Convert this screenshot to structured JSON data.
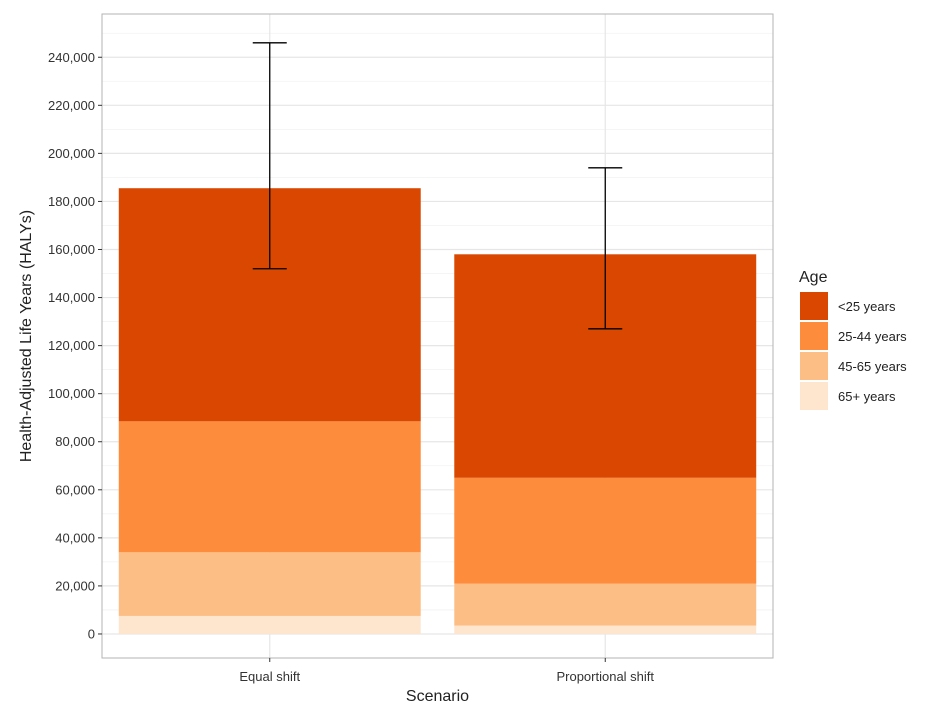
{
  "chart_data": {
    "type": "bar",
    "stacked": true,
    "categories": [
      "Equal shift",
      "Proportional shift"
    ],
    "series": [
      {
        "name": "65+ years",
        "color": "#FEE6CE",
        "values": [
          7500,
          3500
        ]
      },
      {
        "name": "45-65 years",
        "color": "#FDBE85",
        "values": [
          26500,
          17500
        ]
      },
      {
        "name": "25-44 years",
        "color": "#FD8D3C",
        "values": [
          54500,
          44000
        ]
      },
      {
        "name": "<25 years",
        "color": "#D94701",
        "values": [
          97000,
          93000
        ]
      }
    ],
    "totals": [
      185500,
      158000
    ],
    "error_bars": [
      {
        "lower": 152000,
        "upper": 246000
      },
      {
        "lower": 127000,
        "upper": 194000
      }
    ],
    "xlabel": "Scenario",
    "ylabel": "Health-Adjusted Life Years (HALYs)",
    "ylim": [
      -10000,
      258000
    ],
    "yticks": [
      0,
      20000,
      40000,
      60000,
      80000,
      100000,
      120000,
      140000,
      160000,
      180000,
      200000,
      220000,
      240000
    ],
    "ytick_labels": [
      "0",
      "20,000",
      "40,000",
      "60,000",
      "80,000",
      "100,000",
      "120,000",
      "140,000",
      "160,000",
      "180,000",
      "200,000",
      "220,000",
      "240,000"
    ],
    "grid": true,
    "legend": {
      "title": "Age",
      "placement": "right",
      "entries": [
        "<25 years",
        "25-44 years",
        "45-65 years",
        "65+ years"
      ]
    }
  }
}
